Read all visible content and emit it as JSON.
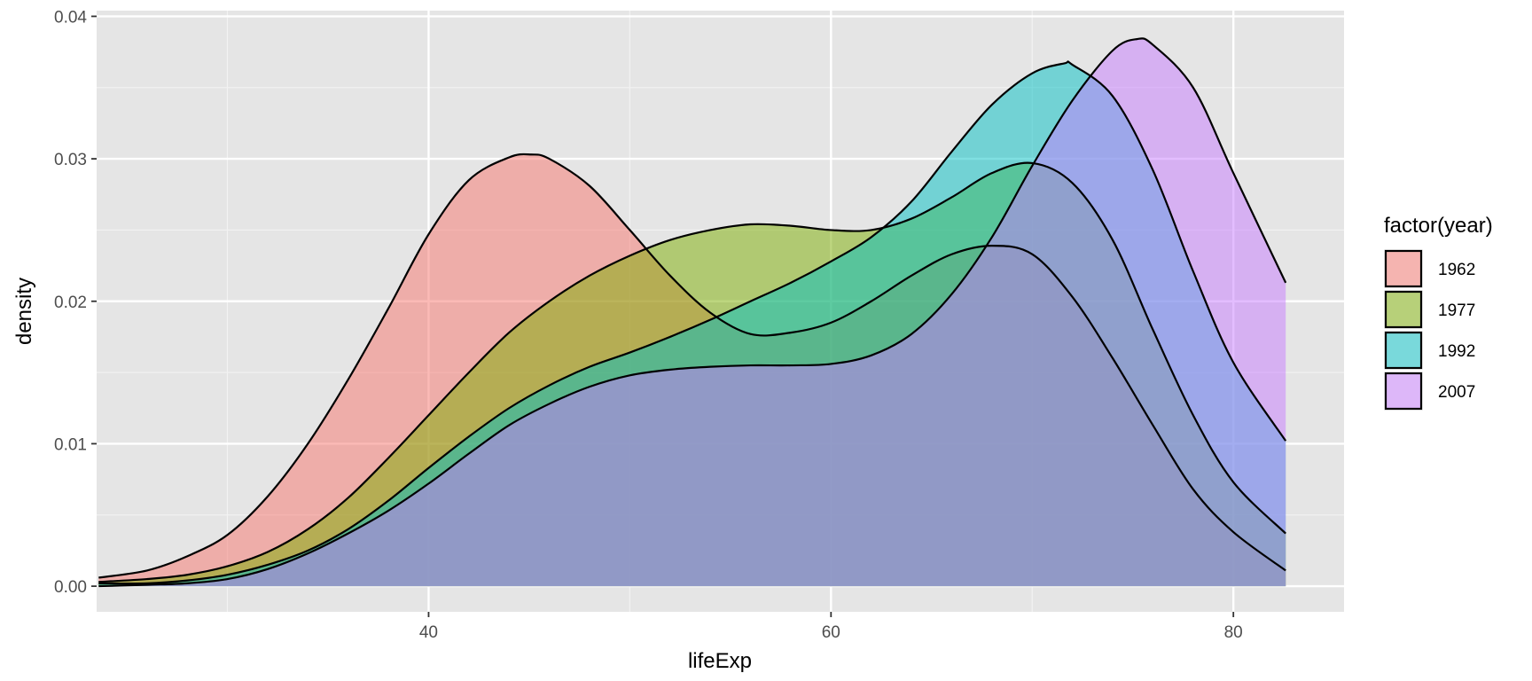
{
  "chart_data": {
    "type": "area",
    "subtype": "density",
    "title": "",
    "xlabel": "lifeExp",
    "ylabel": "density",
    "xlim": [
      23.5,
      85.5
    ],
    "ylim": [
      -0.0018,
      0.0404
    ],
    "x_ticks": [
      40,
      60,
      80
    ],
    "x_tick_labels": [
      "40",
      "60",
      "80"
    ],
    "y_ticks": [
      0,
      0.01,
      0.02,
      0.03,
      0.04
    ],
    "y_tick_labels": [
      "0.00",
      "0.01",
      "0.02",
      "0.03",
      "0.04"
    ],
    "grid": true,
    "background": "#e5e5e5",
    "fill_opacity": 0.5,
    "legend": {
      "title": "factor(year)",
      "placement": "right"
    },
    "series": [
      {
        "name": "1962",
        "color": "#f8766d",
        "x": [
          23.6,
          26,
          28,
          30,
          32,
          34,
          36,
          38,
          40,
          42,
          44,
          45.1,
          46,
          48,
          50,
          52,
          54,
          56,
          58,
          60,
          62,
          64,
          66,
          68,
          70,
          72,
          74,
          76,
          78,
          80,
          82.6
        ],
        "y": [
          0.0006,
          0.0011,
          0.0021,
          0.0036,
          0.0063,
          0.01,
          0.0145,
          0.0195,
          0.0247,
          0.0285,
          0.0301,
          0.0303,
          0.03,
          0.0281,
          0.025,
          0.0218,
          0.0192,
          0.0177,
          0.0178,
          0.0185,
          0.02,
          0.0218,
          0.0233,
          0.0239,
          0.0233,
          0.0203,
          0.016,
          0.0113,
          0.0068,
          0.0038,
          0.0011
        ]
      },
      {
        "name": "1977",
        "color": "#7cae00",
        "x": [
          23.6,
          26,
          28,
          30,
          32,
          34,
          36,
          38,
          40,
          42,
          44,
          46,
          48,
          50,
          52,
          54,
          56,
          58,
          60,
          62,
          64,
          66,
          68,
          70,
          72,
          74,
          76,
          78,
          80,
          82.6
        ],
        "y": [
          0.0003,
          0.0005,
          0.0008,
          0.0014,
          0.0024,
          0.004,
          0.0062,
          0.009,
          0.012,
          0.015,
          0.0178,
          0.02,
          0.0218,
          0.0232,
          0.0243,
          0.025,
          0.0254,
          0.0253,
          0.025,
          0.025,
          0.0258,
          0.0273,
          0.029,
          0.0297,
          0.0283,
          0.0243,
          0.018,
          0.012,
          0.0073,
          0.0037
        ]
      },
      {
        "name": "1992",
        "color": "#00bfc4",
        "x": [
          23.6,
          26,
          28,
          30,
          32,
          34,
          36,
          38,
          40,
          42,
          44,
          46,
          48,
          50,
          52,
          54,
          56,
          58,
          60,
          62,
          64,
          66,
          68,
          70,
          71.6,
          72,
          74,
          76,
          78,
          80,
          82.6
        ],
        "y": [
          0.0002,
          0.0002,
          0.0004,
          0.0008,
          0.0015,
          0.0025,
          0.004,
          0.006,
          0.0083,
          0.0105,
          0.0125,
          0.0141,
          0.0154,
          0.0164,
          0.0175,
          0.0187,
          0.02,
          0.0213,
          0.0228,
          0.0245,
          0.027,
          0.0305,
          0.0338,
          0.036,
          0.0367,
          0.0366,
          0.0344,
          0.0292,
          0.0221,
          0.0157,
          0.0102
        ]
      },
      {
        "name": "2007",
        "color": "#c77cff",
        "x": [
          23.6,
          26,
          28,
          30,
          32,
          34,
          36,
          38,
          40,
          42,
          44,
          46,
          48,
          50,
          52,
          54,
          56,
          58,
          60,
          62,
          64,
          66,
          68,
          70,
          72,
          74,
          75.2,
          76,
          78,
          80,
          82.6
        ],
        "y": [
          0.0,
          0.0001,
          0.0002,
          0.0005,
          0.0012,
          0.0023,
          0.0037,
          0.0053,
          0.0072,
          0.0093,
          0.0113,
          0.0128,
          0.014,
          0.0148,
          0.0152,
          0.0154,
          0.0155,
          0.0155,
          0.0156,
          0.0162,
          0.0177,
          0.0205,
          0.0245,
          0.0295,
          0.0341,
          0.0376,
          0.0384,
          0.038,
          0.035,
          0.029,
          0.0213
        ]
      }
    ]
  }
}
